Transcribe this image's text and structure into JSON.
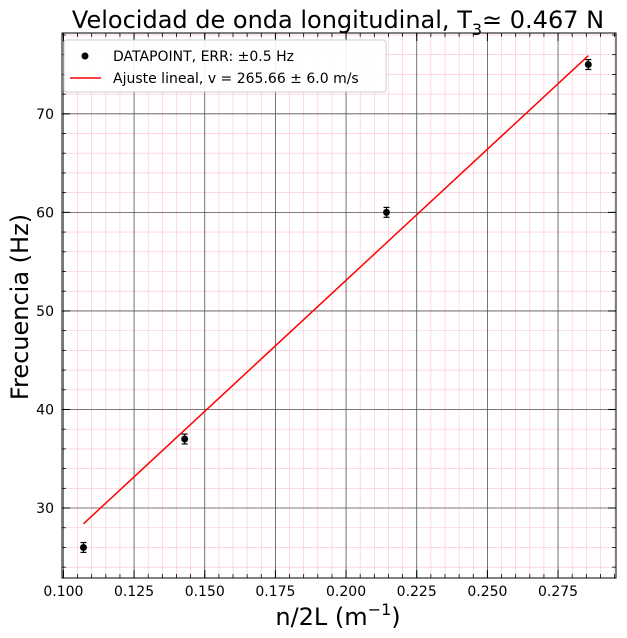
{
  "chart_data": {
    "type": "scatter",
    "title_main": "Velocidad de onda longitudinal, T",
    "title_sub": "3",
    "title_rest": "≃  0.467 N",
    "xlabel_main": "n/2L (m",
    "xlabel_sup": "−1",
    "xlabel_end": ")",
    "ylabel": "Frecuencia (Hz)",
    "xlim": [
      0.0995,
      0.2955
    ],
    "ylim": [
      22.9,
      78.2
    ],
    "x_ticks": [
      0.1,
      0.125,
      0.15,
      0.175,
      0.2,
      0.225,
      0.25,
      0.275
    ],
    "x_tick_labels": [
      "0.100",
      "0.125",
      "0.150",
      "0.175",
      "0.200",
      "0.225",
      "0.250",
      "0.275"
    ],
    "y_ticks": [
      30,
      40,
      50,
      60,
      70
    ],
    "y_tick_labels": [
      "30",
      "40",
      "50",
      "60",
      "70"
    ],
    "grid": true,
    "legend_position": "top-left",
    "series": [
      {
        "name": "DATAPOINT, ERR: ±0.5 Hz",
        "kind": "points",
        "color": "#000000",
        "x": [
          0.1071,
          0.1429,
          0.2143,
          0.2857
        ],
        "y": [
          26,
          37,
          60,
          75
        ],
        "yerr": 0.5
      },
      {
        "name": "Ajuste lineal, v = 265.66 ± 6.0 m/s",
        "kind": "line",
        "color": "#ff0000",
        "x": [
          0.1071,
          0.2857
        ],
        "y": [
          28.4,
          75.9
        ]
      }
    ],
    "colors": {
      "major_grid": "#555555",
      "minor_grid": "#ffc0cb"
    }
  }
}
